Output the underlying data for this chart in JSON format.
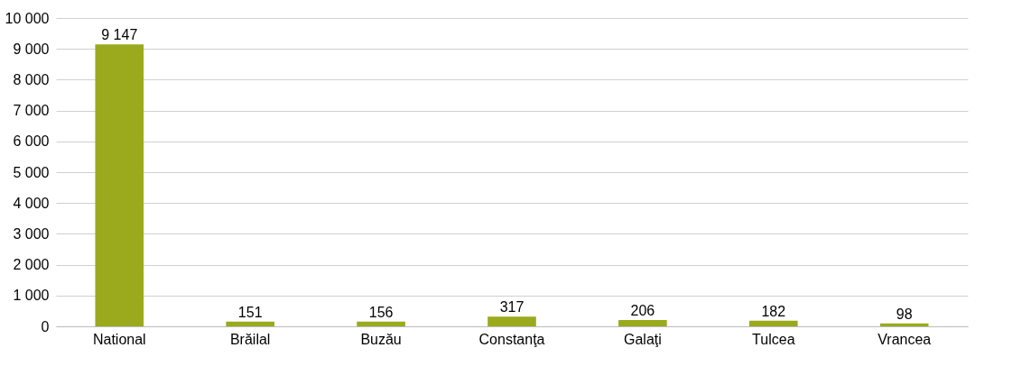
{
  "chart_data": {
    "type": "bar",
    "categories": [
      "National",
      "Brăilal",
      "Buzău",
      "Constanţa",
      "Galaţi",
      "Tulcea",
      "Vrancea"
    ],
    "values": [
      9147,
      151,
      156,
      317,
      206,
      182,
      98
    ],
    "value_labels": [
      "9 147",
      "151",
      "156",
      "317",
      "206",
      "182",
      "98"
    ],
    "color": "#9aaa1c",
    "ylim": [
      0,
      10000
    ],
    "yticks": [
      0,
      {
        "value": 1000,
        "label": "1 000"
      },
      {
        "value": 2000,
        "label": "2 000"
      },
      {
        "value": 3000,
        "label": "3 000"
      },
      {
        "value": 4000,
        "label": "4 000"
      },
      {
        "value": 5000,
        "label": "5 000"
      },
      {
        "value": 6000,
        "label": "6 000"
      },
      {
        "value": 7000,
        "label": "7 000"
      },
      {
        "value": 8000,
        "label": "8 000"
      },
      {
        "value": 9000,
        "label": "9 000"
      },
      {
        "value": 10000,
        "label": "10 000"
      }
    ],
    "grid": "y"
  }
}
